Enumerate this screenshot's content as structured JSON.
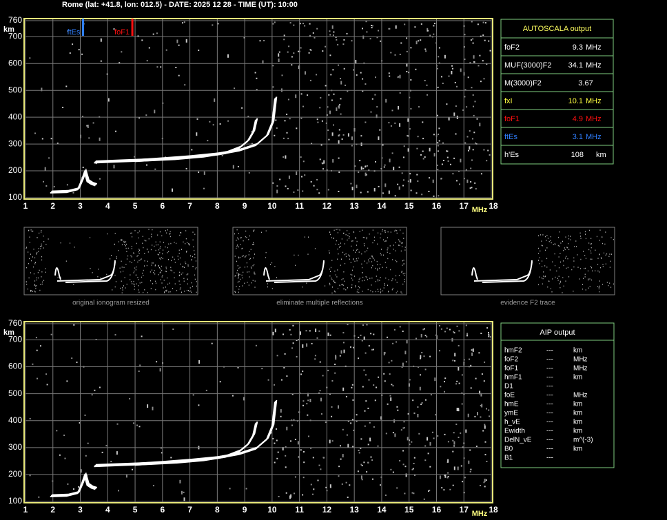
{
  "header": {
    "title": "Rome (lat: +41.8, lon: 012.5) - DATE: 2025 12 28 - TIME (UT): 10:00"
  },
  "chart_data": [
    {
      "type": "ionogram",
      "x_label": "MHz",
      "y_label": "km",
      "xlim": [
        1,
        18
      ],
      "ylim": [
        100,
        760
      ],
      "xticks": [
        1,
        2,
        3,
        4,
        5,
        6,
        7,
        8,
        9,
        10,
        11,
        12,
        13,
        14,
        15,
        16,
        17,
        18
      ],
      "yticks": [
        100,
        200,
        300,
        400,
        500,
        600,
        700,
        760
      ],
      "grid": true,
      "markers": [
        {
          "label": "ftEs",
          "x": 3.1,
          "color": "#2f7fff"
        },
        {
          "label": "foF1",
          "x": 4.9,
          "color": "#ff1010"
        }
      ],
      "series": [
        {
          "color": "#ffffff",
          "x": [
            1.9,
            2.5,
            2.9,
            3.05,
            3.15,
            3.25,
            3.4,
            3.55
          ],
          "values": [
            118,
            120,
            130,
            165,
            195,
            160,
            150,
            145
          ]
        },
        {
          "color": "#ffffff",
          "x": [
            3.5,
            4.5,
            5.5,
            6.5,
            7.5,
            8.3,
            8.8,
            9.1,
            9.3,
            9.4
          ],
          "values": [
            230,
            234,
            238,
            243,
            252,
            265,
            285,
            310,
            345,
            390
          ]
        },
        {
          "color": "#ffffff",
          "x": [
            5,
            6,
            7,
            8,
            8.8,
            9.4,
            9.8,
            10,
            10.1
          ],
          "values": [
            235,
            242,
            250,
            260,
            275,
            295,
            330,
            380,
            470
          ]
        }
      ]
    },
    {
      "type": "ionogram",
      "x_label": "MHz",
      "y_label": "km",
      "xlim": [
        1,
        18
      ],
      "ylim": [
        100,
        760
      ],
      "xticks": [
        1,
        2,
        3,
        4,
        5,
        6,
        7,
        8,
        9,
        10,
        11,
        12,
        13,
        14,
        15,
        16,
        17,
        18
      ],
      "yticks": [
        100,
        200,
        300,
        400,
        500,
        600,
        700,
        760
      ],
      "grid": true,
      "series": [
        {
          "color": "#ffffff",
          "x": [
            1.9,
            2.5,
            2.9,
            3.05,
            3.15,
            3.25,
            3.4,
            3.55
          ],
          "values": [
            118,
            120,
            130,
            165,
            195,
            160,
            150,
            145
          ]
        },
        {
          "color": "#ffffff",
          "x": [
            3.5,
            4.5,
            5.5,
            6.5,
            7.5,
            8.3,
            8.8,
            9.1,
            9.3,
            9.4
          ],
          "values": [
            230,
            234,
            238,
            243,
            252,
            265,
            285,
            310,
            345,
            390
          ]
        },
        {
          "color": "#ffffff",
          "x": [
            5,
            6,
            7,
            8,
            8.8,
            9.4,
            9.8,
            10,
            10.1
          ],
          "values": [
            235,
            242,
            250,
            260,
            275,
            295,
            330,
            380,
            470
          ]
        }
      ]
    }
  ],
  "autoscala": {
    "title": "AUTOSCALA output",
    "rows": [
      {
        "label": "foF2",
        "value": "9.3",
        "unit": "MHz",
        "color": "#ffffff"
      },
      {
        "label": "MUF(3000)F2",
        "value": "34.1",
        "unit": "MHz",
        "color": "#ffffff"
      },
      {
        "label": "M(3000)F2",
        "value": "3.67",
        "color": "#ffffff"
      },
      {
        "label": "fxI",
        "value": "10.1",
        "unit": "MHz",
        "color": "#ffff40"
      },
      {
        "label": "foF1",
        "value": "4.9",
        "unit": "MHz",
        "color": "#ff1010"
      },
      {
        "label": "ftEs",
        "value": "3.1",
        "unit": "MHz",
        "color": "#2f7fff"
      },
      {
        "label": "h'Es",
        "value": "108",
        "unit": "km",
        "color": "#ffffff"
      }
    ]
  },
  "thumbnails": [
    "original ionogram resized",
    "eliminate multiple reflections",
    "evidence F2 trace"
  ],
  "aip": {
    "title": "AIP output",
    "rows": [
      [
        "hmF2",
        "---",
        "km"
      ],
      [
        "foF2",
        "---",
        "MHz"
      ],
      [
        "foF1",
        "---",
        "MHz"
      ],
      [
        "hmF1",
        "---",
        "km"
      ],
      [
        "D1",
        "---"
      ],
      [
        "foE",
        "---",
        "MHz"
      ],
      [
        "hmE",
        "---",
        "km"
      ],
      [
        "ymE",
        "---",
        "km"
      ],
      [
        "h_vE",
        "---",
        "km"
      ],
      [
        "Ewidth",
        "---",
        "km"
      ],
      [
        "DelN_vE",
        "---",
        "m^(-3)"
      ],
      [
        "B0",
        "---",
        "km"
      ],
      [
        "B1",
        "---"
      ]
    ]
  }
}
